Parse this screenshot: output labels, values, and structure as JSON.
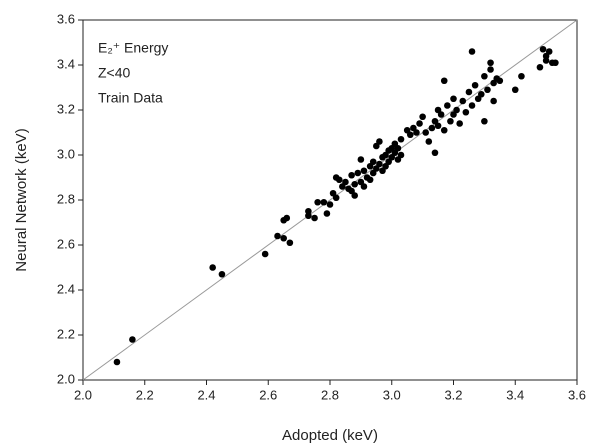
{
  "chart_data": {
    "type": "scatter",
    "xlabel": "Adopted (keV)",
    "ylabel": "Neural Network (keV)",
    "annotations": [
      "E₂⁺ Energy",
      "Z<40",
      "Train Data"
    ],
    "color": "#000000",
    "xlim": [
      2.0,
      3.6
    ],
    "ylim": [
      2.0,
      3.6
    ],
    "xticks": [
      {
        "value": 2.0,
        "label": "2.0"
      },
      2.2,
      2.4,
      2.6,
      2.8,
      {
        "value": 3.0,
        "label": "3.0"
      },
      3.2,
      3.4,
      3.6
    ],
    "yticks": [
      {
        "value": 2.0,
        "label": "2.0"
      },
      2.2,
      2.4,
      2.6,
      2.8,
      {
        "value": 3.0,
        "label": "3.0"
      },
      3.2,
      3.4,
      3.6
    ],
    "x": [
      2.11,
      2.16,
      2.42,
      2.45,
      2.59,
      2.63,
      2.65,
      2.65,
      2.66,
      2.67,
      2.73,
      2.73,
      2.75,
      2.76,
      2.78,
      2.79,
      2.8,
      2.81,
      2.82,
      2.82,
      2.83,
      2.84,
      2.85,
      2.86,
      2.87,
      2.87,
      2.88,
      2.88,
      2.89,
      2.9,
      2.9,
      2.91,
      2.91,
      2.92,
      2.93,
      2.93,
      2.94,
      2.94,
      2.95,
      2.95,
      2.96,
      2.96,
      2.97,
      2.97,
      2.98,
      2.98,
      2.99,
      2.99,
      3.0,
      3.0,
      3.01,
      3.01,
      3.02,
      3.02,
      3.03,
      3.03,
      3.05,
      3.06,
      3.07,
      3.08,
      3.09,
      3.1,
      3.11,
      3.12,
      3.13,
      3.14,
      3.14,
      3.15,
      3.15,
      3.16,
      3.17,
      3.17,
      3.18,
      3.19,
      3.2,
      3.2,
      3.21,
      3.22,
      3.23,
      3.24,
      3.25,
      3.26,
      3.26,
      3.27,
      3.28,
      3.29,
      3.3,
      3.3,
      3.31,
      3.32,
      3.32,
      3.33,
      3.33,
      3.34,
      3.35,
      3.4,
      3.42,
      3.48,
      3.49,
      3.5,
      3.51,
      3.52,
      3.53,
      3.5
    ],
    "values": [
      2.08,
      2.18,
      2.5,
      2.47,
      2.56,
      2.64,
      2.63,
      2.71,
      2.72,
      2.61,
      2.75,
      2.73,
      2.72,
      2.79,
      2.79,
      2.74,
      2.78,
      2.83,
      2.9,
      2.81,
      2.89,
      2.86,
      2.88,
      2.85,
      2.84,
      2.91,
      2.87,
      2.82,
      2.92,
      2.88,
      2.98,
      2.86,
      2.93,
      2.9,
      2.95,
      2.89,
      2.97,
      2.92,
      2.94,
      3.04,
      3.06,
      2.96,
      2.93,
      2.99,
      3.0,
      2.95,
      3.02,
      2.97,
      3.03,
      2.99,
      3.05,
      3.01,
      2.98,
      3.03,
      3.07,
      3.0,
      3.11,
      3.09,
      3.12,
      3.1,
      3.14,
      3.17,
      3.1,
      3.06,
      3.12,
      3.01,
      3.15,
      3.2,
      3.13,
      3.18,
      3.33,
      3.11,
      3.22,
      3.15,
      3.18,
      3.25,
      3.2,
      3.14,
      3.24,
      3.19,
      3.28,
      3.46,
      3.22,
      3.31,
      3.25,
      3.27,
      3.15,
      3.35,
      3.29,
      3.41,
      3.38,
      3.32,
      3.24,
      3.34,
      3.33,
      3.29,
      3.35,
      3.39,
      3.47,
      3.44,
      3.46,
      3.41,
      3.41,
      3.42
    ]
  }
}
